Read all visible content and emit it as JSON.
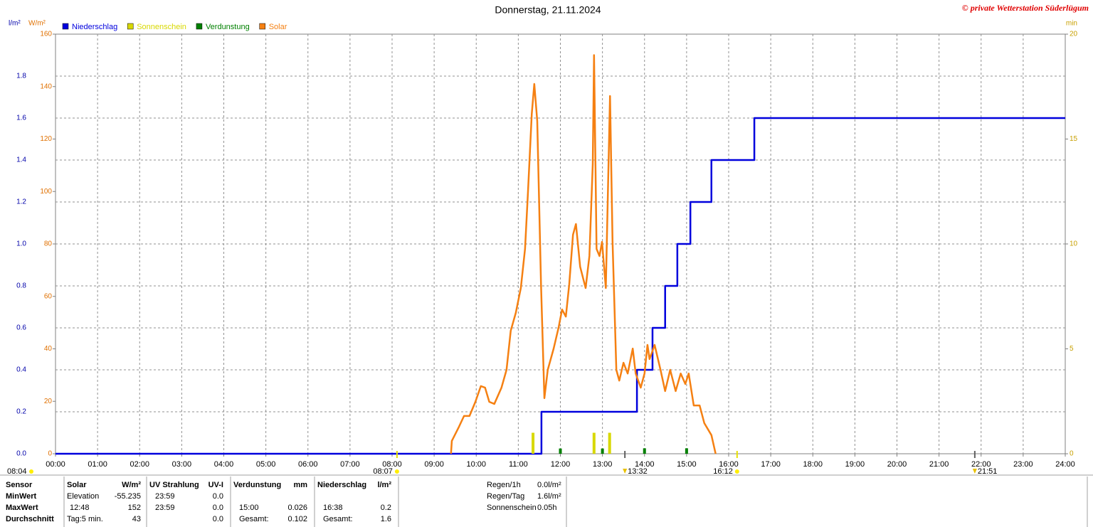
{
  "chart_data": {
    "type": "line",
    "title": "Donnerstag, 21.11.2024",
    "copyright": "© private Wetterstation Süderlügum",
    "y_label": "l/m²",
    "y2_label": "W/m²",
    "y3_label": "min",
    "xlim": [
      0,
      24
    ],
    "xticks": [
      {
        "value": 0,
        "label": "00:00"
      },
      {
        "value": 1,
        "label": "01:00"
      },
      {
        "value": 2,
        "label": "02:00"
      },
      {
        "value": 3,
        "label": "03:00"
      },
      {
        "value": 4,
        "label": "04:00"
      },
      {
        "value": 5,
        "label": "05:00"
      },
      {
        "value": 6,
        "label": "06:00"
      },
      {
        "value": 7,
        "label": "07:00"
      },
      {
        "value": 8,
        "label": "08:00"
      },
      {
        "value": 9,
        "label": "09:00"
      },
      {
        "value": 10,
        "label": "10:00"
      },
      {
        "value": 11,
        "label": "11:00"
      },
      {
        "value": 12,
        "label": "12:00"
      },
      {
        "value": 13,
        "label": "13:00"
      },
      {
        "value": 14,
        "label": "14:00"
      },
      {
        "value": 15,
        "label": "15:00"
      },
      {
        "value": 16,
        "label": "16:00"
      },
      {
        "value": 17,
        "label": "17:00"
      },
      {
        "value": 18,
        "label": "18:00"
      },
      {
        "value": 19,
        "label": "19:00"
      },
      {
        "value": 20,
        "label": "20:00"
      },
      {
        "value": 21,
        "label": "21:00"
      },
      {
        "value": 22,
        "label": "22:00"
      },
      {
        "value": 23,
        "label": "23:00"
      },
      {
        "value": 24,
        "label": "24:00"
      }
    ],
    "ylim": [
      0,
      2
    ],
    "yticks": [
      {
        "value": 0,
        "label": "0.0"
      },
      0.2,
      0.4,
      0.6,
      0.8,
      {
        "value": 1,
        "label": "1.0"
      },
      1.2,
      1.4,
      1.6,
      1.8
    ],
    "y2lim": [
      0,
      160
    ],
    "y2ticks": [
      0,
      20,
      40,
      60,
      80,
      100,
      120,
      140,
      160
    ],
    "y3lim": [
      0,
      20
    ],
    "y3ticks": [
      0,
      5,
      10,
      15,
      20
    ],
    "grid": true,
    "series": [
      {
        "name": "Niederschlag",
        "color": "#0000dd",
        "kind": "step",
        "axis": "y",
        "x": [
          0,
          11.55,
          13.82,
          14.19,
          14.49,
          14.78,
          15.09,
          15.59,
          16.61,
          24
        ],
        "values": [
          0,
          0.2,
          0.4,
          0.6,
          0.8,
          1.0,
          1.2,
          1.4,
          1.6,
          1.6
        ]
      },
      {
        "name": "Sonnenschein",
        "color": "#d8d800",
        "kind": "bar",
        "axis": "y3",
        "x": [
          11.35,
          12.8,
          13.17
        ],
        "values": [
          1,
          1,
          1
        ]
      },
      {
        "name": "Verdunstung",
        "color": "#008000",
        "kind": "bar",
        "axis": "y",
        "x": [
          12,
          13,
          14,
          15
        ],
        "values": [
          0.025,
          0.025,
          0.026,
          0.026
        ]
      },
      {
        "name": "Solar",
        "color": "#f58012",
        "kind": "line",
        "axis": "y2",
        "x": [
          9.4,
          9.42,
          9.59,
          9.71,
          9.84,
          9.98,
          10.11,
          10.21,
          10.31,
          10.43,
          10.6,
          10.72,
          10.82,
          10.94,
          11.06,
          11.16,
          11.23,
          11.32,
          11.38,
          11.45,
          11.54,
          11.62,
          11.7,
          11.84,
          11.96,
          12.04,
          12.13,
          12.21,
          12.3,
          12.37,
          12.47,
          12.6,
          12.69,
          12.77,
          12.8,
          12.86,
          12.93,
          12.99,
          13.08,
          13.18,
          13.24,
          13.33,
          13.4,
          13.5,
          13.6,
          13.72,
          13.79,
          13.91,
          14.0,
          14.07,
          14.12,
          14.24,
          14.38,
          14.49,
          14.61,
          14.74,
          14.86,
          14.97,
          15.05,
          15.17,
          15.31,
          15.42,
          15.59,
          15.69
        ],
        "values": [
          0,
          4.9,
          10.3,
          14.4,
          14.4,
          19.8,
          25.8,
          25.2,
          19.8,
          19,
          25.2,
          32,
          46.9,
          53.7,
          63.2,
          78.1,
          99.8,
          129.6,
          141,
          126.9,
          64.5,
          21.2,
          32,
          40.1,
          48.3,
          55,
          52.3,
          64.5,
          83.5,
          87.6,
          71.3,
          63.2,
          75.4,
          110.6,
          152,
          78.1,
          75.4,
          80.8,
          63.2,
          136.4,
          80.8,
          32,
          27.9,
          34.7,
          30.6,
          40.1,
          30.6,
          25.2,
          30.6,
          41.5,
          36.1,
          41.5,
          32,
          23.9,
          32,
          23.9,
          30.6,
          26.6,
          30.6,
          18.4,
          18.4,
          11.7,
          7.1,
          0
        ]
      }
    ],
    "left_note": "08:04",
    "events": [
      {
        "label": "08:07"
      },
      {
        "label": "13:32"
      },
      {
        "label": "16:12"
      },
      {
        "label": "21:51"
      }
    ]
  },
  "stats": {
    "row_labels": [
      "Sensor",
      "MinWert",
      "MaxWert",
      "Durchschnitt"
    ],
    "groups": [
      {
        "title": "Solar",
        "unit": "W/m²",
        "rows": [
          [
            "Elevation",
            "-55.235"
          ],
          [
            "12:48",
            "152"
          ],
          [
            "Tag:5 min.",
            "43"
          ]
        ]
      },
      {
        "title": "UV Strahlung",
        "unit": "UV-I",
        "rows": [
          [
            "23:59",
            "0.0"
          ],
          [
            "23:59",
            "0.0"
          ],
          [
            null,
            "0.0"
          ]
        ]
      },
      {
        "title": "Verdunstung",
        "unit": "mm",
        "rows": [
          [
            null,
            null
          ],
          [
            "15:00",
            "0.026"
          ],
          [
            "Gesamt:",
            "0.102"
          ]
        ]
      },
      {
        "title": "Niederschlag",
        "unit": "l/m²",
        "rows": [
          [
            null,
            null
          ],
          [
            "16:38",
            "0.2"
          ],
          [
            "Gesamt:",
            "1.6"
          ]
        ]
      }
    ],
    "summary": [
      [
        "Regen/1h",
        "0.0l/m²"
      ],
      [
        "Regen/Tag",
        "1.6l/m²"
      ],
      [
        "Sonnenschein",
        "0.05h"
      ]
    ]
  }
}
